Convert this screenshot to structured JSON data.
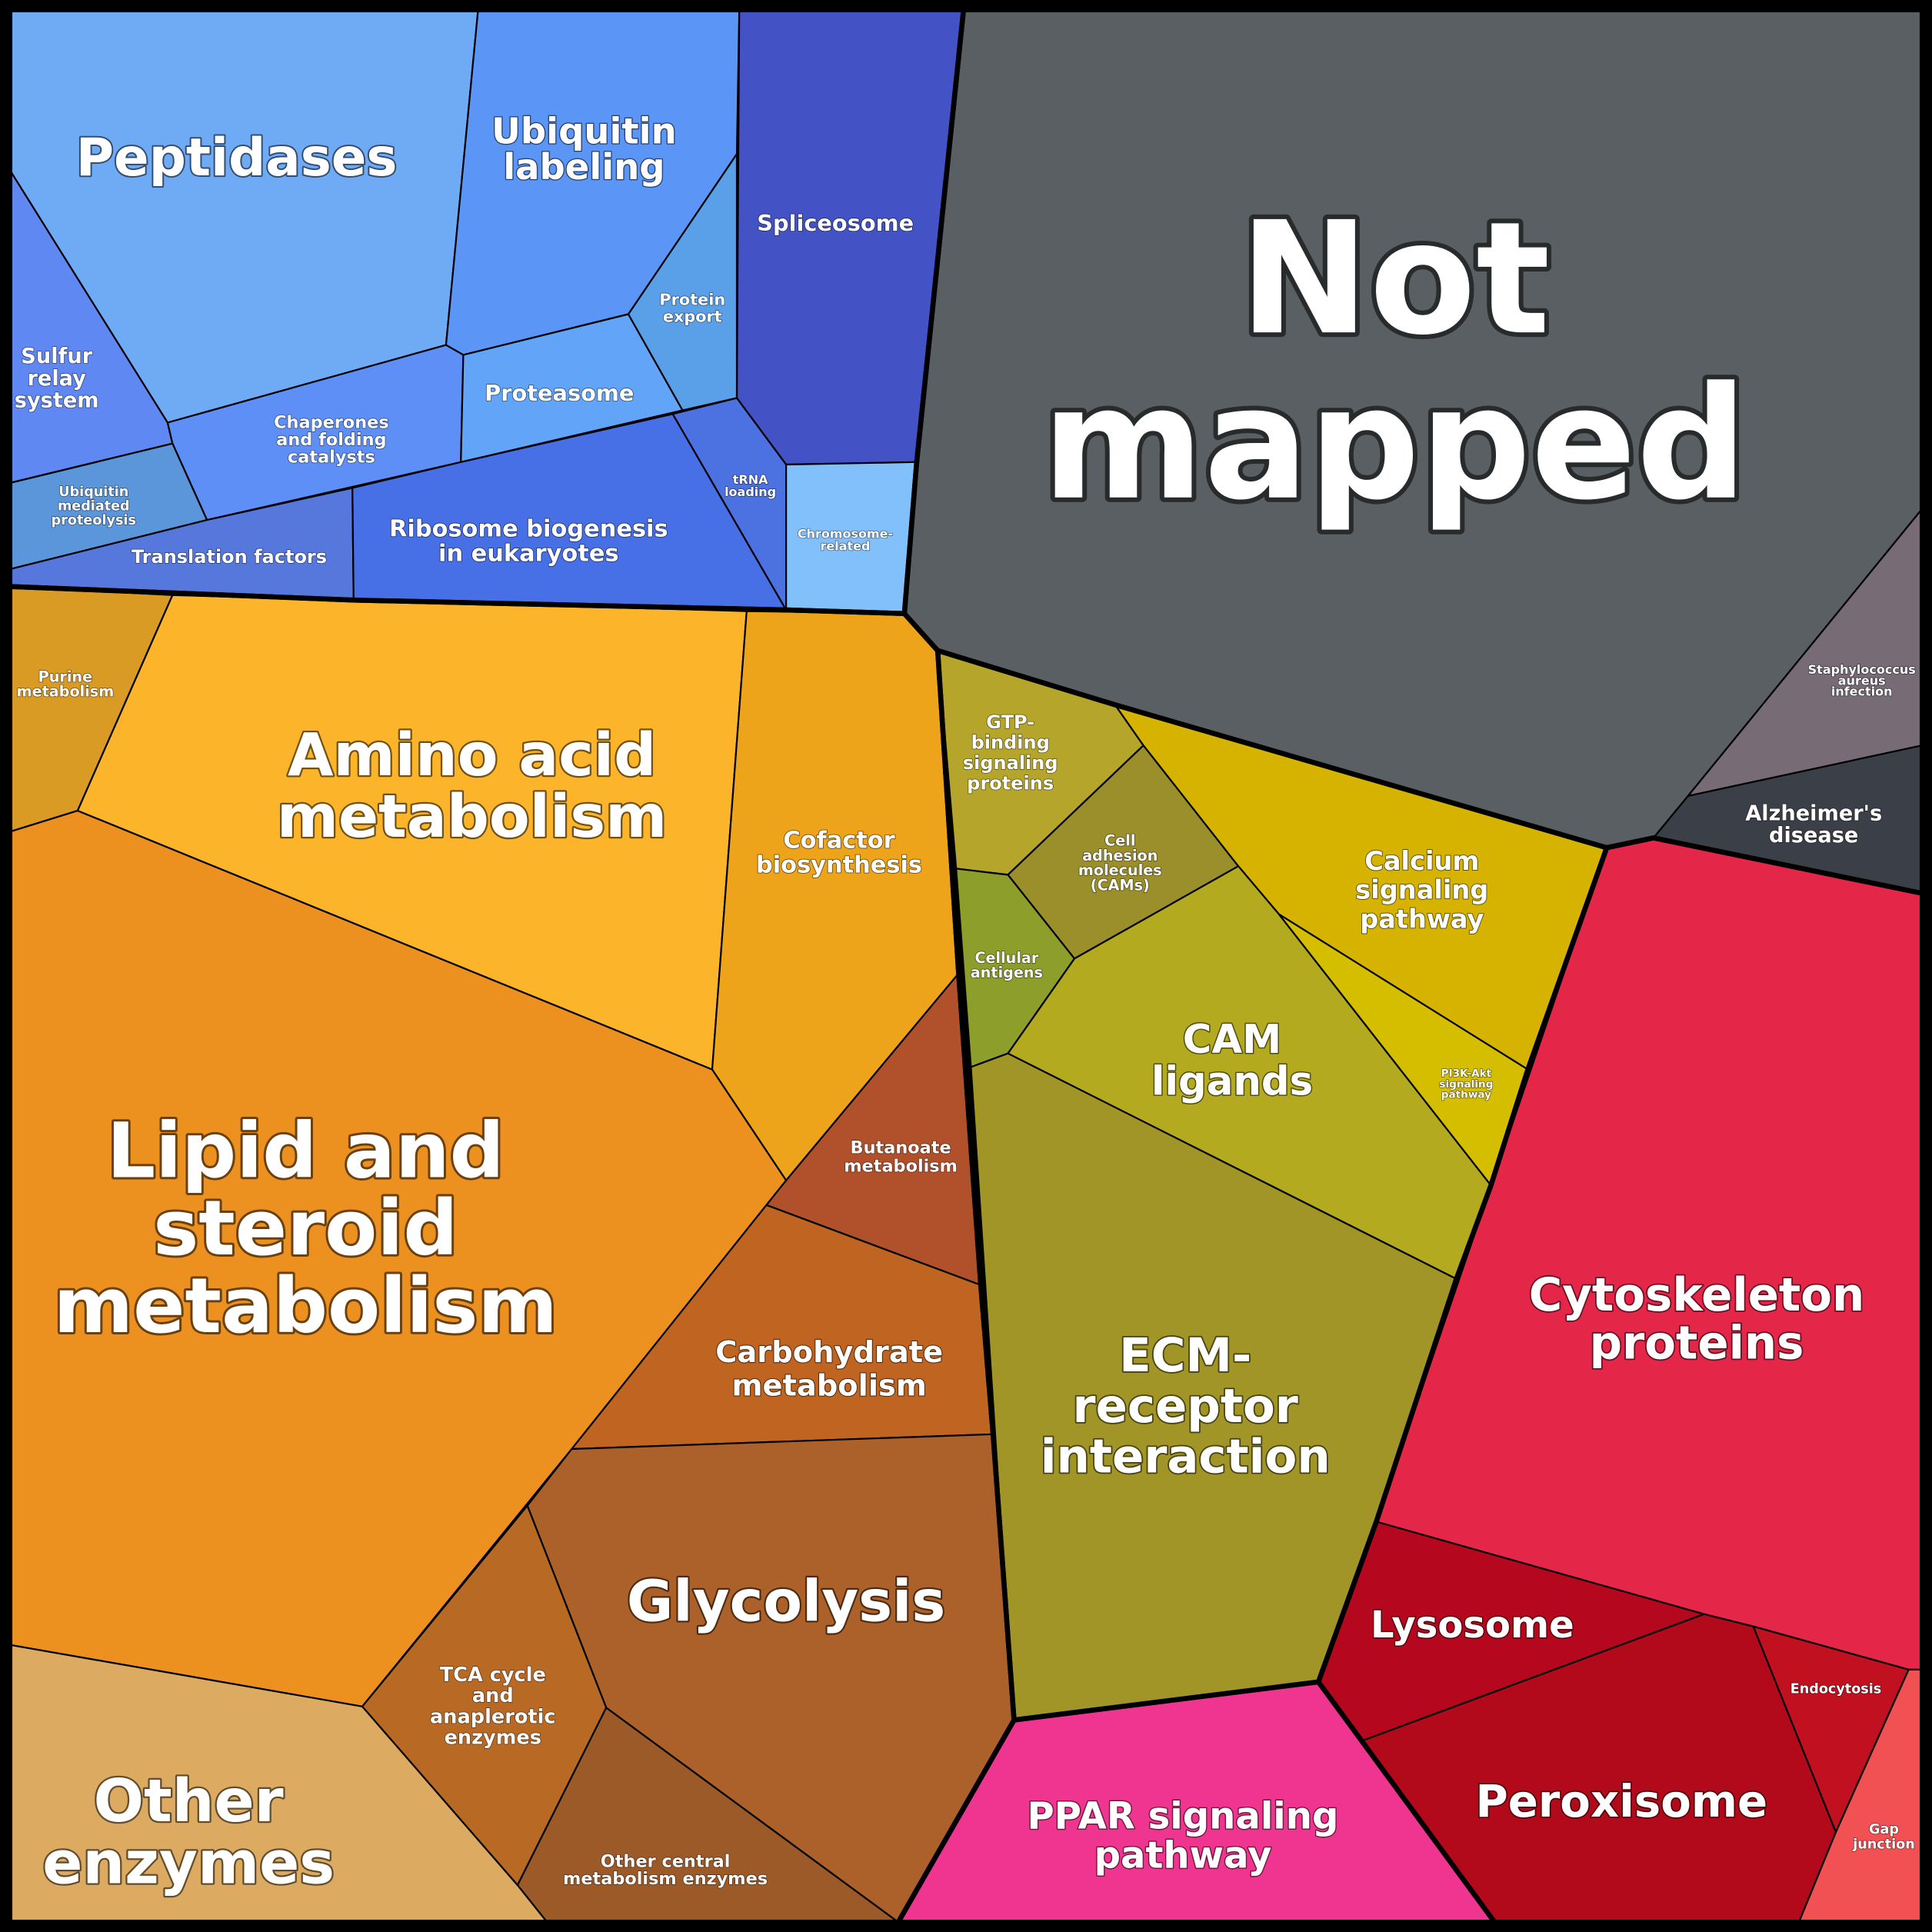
{
  "colors": {
    "blue_group": "#5b8df0",
    "orange_group": "#ec9120",
    "olive_group": "#a09526",
    "red_group": "#e42649",
    "grey_group": "#5a5f63"
  },
  "cells": [
    {
      "id": "peptidases",
      "label": "Peptidases",
      "color": "#6faaf5"
    },
    {
      "id": "ubiquitin-labeling",
      "label": "Ubiquitin labeling",
      "color": "#5b96f7"
    },
    {
      "id": "spliceosome",
      "label": "Spliceosome",
      "color": "#4352c4"
    },
    {
      "id": "sulfur-relay-system",
      "label": "Sulfur relay system",
      "color": "#6088f3"
    },
    {
      "id": "chaperones",
      "label": "Chaperones and folding catalysts",
      "color": "#5d8ff7"
    },
    {
      "id": "proteasome",
      "label": "Proteasome",
      "color": "#62a5f8"
    },
    {
      "id": "protein-export",
      "label": "Protein export",
      "color": "#5aa0e8"
    },
    {
      "id": "ubiquitin-mediated-proteolysis",
      "label": "Ubiquitin mediated proteolysis",
      "color": "#5b95da"
    },
    {
      "id": "translation-factors",
      "label": "Translation factors",
      "color": "#5677dc"
    },
    {
      "id": "ribosome-biogenesis",
      "label": "Ribosome biogenesis in eukaryotes",
      "color": "#4770e6"
    },
    {
      "id": "trna-loading",
      "label": "tRNA loading",
      "color": "#4b72e0"
    },
    {
      "id": "chromosome-related",
      "label": "Chromosome-related",
      "color": "#82c0fb"
    },
    {
      "id": "not-mapped",
      "label": "Not mapped",
      "color": "#5a5f63"
    },
    {
      "id": "staphylococcus",
      "label": "Staphylococcus aureus infection",
      "color": "#776b75"
    },
    {
      "id": "alzheimers",
      "label": "Alzheimer's disease",
      "color": "#3a3f48"
    },
    {
      "id": "purine-metabolism",
      "label": "Purine metabolism",
      "color": "#da9b25"
    },
    {
      "id": "amino-acid-metabolism",
      "label": "Amino acid metabolism",
      "color": "#fcb52a"
    },
    {
      "id": "cofactor-biosynthesis",
      "label": "Cofactor biosynthesis",
      "color": "#eda41b"
    },
    {
      "id": "lipid-steroid-metabolism",
      "label": "Lipid and steroid metabolism",
      "color": "#ec9120"
    },
    {
      "id": "butanoate-metabolism",
      "label": "Butanoate metabolism",
      "color": "#b1512b"
    },
    {
      "id": "carbohydrate-metabolism",
      "label": "Carbohydrate metabolism",
      "color": "#c06421"
    },
    {
      "id": "glycolysis",
      "label": "Glycolysis",
      "color": "#ab6129"
    },
    {
      "id": "tca-cycle",
      "label": "TCA cycle and anaplerotic enzymes",
      "color": "#b86a25"
    },
    {
      "id": "other-central-metabolism",
      "label": "Other central metabolism enzymes",
      "color": "#9c5a29"
    },
    {
      "id": "other-enzymes",
      "label": "Other enzymes",
      "color": "#dcaa61"
    },
    {
      "id": "gtp-binding",
      "label": "GTP-binding signaling proteins",
      "color": "#b5a52b"
    },
    {
      "id": "cell-adhesion-molecules",
      "label": "Cell adhesion molecules (CAMs)",
      "color": "#9a8f2b"
    },
    {
      "id": "cellular-antigens",
      "label": "Cellular antigens",
      "color": "#8e9e2a"
    },
    {
      "id": "calcium-signaling",
      "label": "Calcium signaling pathway",
      "color": "#d6b300"
    },
    {
      "id": "cam-ligands",
      "label": "CAM ligands",
      "color": "#b4aa20"
    },
    {
      "id": "pi3k-akt",
      "label": "PI3K-Akt signaling pathway",
      "color": "#d5be00"
    },
    {
      "id": "ecm-receptor",
      "label": "ECM-receptor interaction",
      "color": "#a09526"
    },
    {
      "id": "ppar-signaling",
      "label": "PPAR signaling pathway",
      "color": "#ef358f"
    },
    {
      "id": "cytoskeleton-proteins",
      "label": "Cytoskeleton proteins",
      "color": "#e42649"
    },
    {
      "id": "lysosome",
      "label": "Lysosome",
      "color": "#b5071d"
    },
    {
      "id": "peroxisome",
      "label": "Peroxisome",
      "color": "#b30a1b"
    },
    {
      "id": "endocytosis",
      "label": "Endocytosis",
      "color": "#c1101f"
    },
    {
      "id": "gap-junction",
      "label": "Gap junction",
      "color": "#f25153"
    }
  ],
  "labels": [
    {
      "cell": "peptidases",
      "lines": [
        "Peptidases"
      ]
    },
    {
      "cell": "ubiquitin-labeling",
      "lines": [
        "Ubiquitin",
        "labeling"
      ]
    },
    {
      "cell": "spliceosome",
      "lines": [
        "Spliceosome"
      ]
    },
    {
      "cell": "sulfur-relay-system",
      "lines": [
        "Sulfur",
        "relay",
        "system"
      ]
    },
    {
      "cell": "chaperones",
      "lines": [
        "Chaperones",
        "and folding",
        "catalysts"
      ]
    },
    {
      "cell": "proteasome",
      "lines": [
        "Proteasome"
      ]
    },
    {
      "cell": "protein-export",
      "lines": [
        "Protein",
        "export"
      ]
    },
    {
      "cell": "ubiquitin-mediated-proteolysis",
      "lines": [
        "Ubiquitin",
        "mediated",
        "proteolysis"
      ]
    },
    {
      "cell": "translation-factors",
      "lines": [
        "Translation factors"
      ]
    },
    {
      "cell": "ribosome-biogenesis",
      "lines": [
        "Ribosome biogenesis",
        "in eukaryotes"
      ]
    },
    {
      "cell": "trna-loading",
      "lines": [
        "tRNA",
        "loading"
      ]
    },
    {
      "cell": "chromosome-related",
      "lines": [
        "Chromosome-",
        "related"
      ]
    },
    {
      "cell": "not-mapped",
      "lines": [
        "Not",
        "mapped"
      ]
    },
    {
      "cell": "staphylococcus",
      "lines": [
        "Staphylococcus",
        "aureus",
        "infection"
      ]
    },
    {
      "cell": "alzheimers",
      "lines": [
        "Alzheimer's",
        "disease"
      ]
    },
    {
      "cell": "purine-metabolism",
      "lines": [
        "Purine",
        "metabolism"
      ]
    },
    {
      "cell": "amino-acid-metabolism",
      "lines": [
        "Amino acid",
        "metabolism"
      ]
    },
    {
      "cell": "cofactor-biosynthesis",
      "lines": [
        "Cofactor",
        "biosynthesis"
      ]
    },
    {
      "cell": "lipid-steroid-metabolism",
      "lines": [
        "Lipid and",
        "steroid",
        "metabolism"
      ]
    },
    {
      "cell": "butanoate-metabolism",
      "lines": [
        "Butanoate",
        "metabolism"
      ]
    },
    {
      "cell": "carbohydrate-metabolism",
      "lines": [
        "Carbohydrate",
        "metabolism"
      ]
    },
    {
      "cell": "glycolysis",
      "lines": [
        "Glycolysis"
      ]
    },
    {
      "cell": "tca-cycle",
      "lines": [
        "TCA cycle",
        "and",
        "anaplerotic",
        "enzymes"
      ]
    },
    {
      "cell": "other-central-metabolism",
      "lines": [
        "Other central",
        "metabolism enzymes"
      ]
    },
    {
      "cell": "other-enzymes",
      "lines": [
        "Other",
        "enzymes"
      ]
    },
    {
      "cell": "gtp-binding",
      "lines": [
        "GTP-",
        "binding",
        "signaling",
        "proteins"
      ]
    },
    {
      "cell": "cell-adhesion-molecules",
      "lines": [
        "Cell",
        "adhesion",
        "molecules",
        "(CAMs)"
      ]
    },
    {
      "cell": "cellular-antigens",
      "lines": [
        "Cellular",
        "antigens"
      ]
    },
    {
      "cell": "calcium-signaling",
      "lines": [
        "Calcium",
        "signaling",
        "pathway"
      ]
    },
    {
      "cell": "cam-ligands",
      "lines": [
        "CAM",
        "ligands"
      ]
    },
    {
      "cell": "pi3k-akt",
      "lines": [
        "PI3K-Akt",
        "signaling",
        "pathway"
      ]
    },
    {
      "cell": "ecm-receptor",
      "lines": [
        "ECM-",
        "receptor",
        "interaction"
      ]
    },
    {
      "cell": "ppar-signaling",
      "lines": [
        "PPAR signaling",
        "pathway"
      ]
    },
    {
      "cell": "cytoskeleton-proteins",
      "lines": [
        "Cytoskeleton",
        "proteins"
      ]
    },
    {
      "cell": "lysosome",
      "lines": [
        "Lysosome"
      ]
    },
    {
      "cell": "peroxisome",
      "lines": [
        "Peroxisome"
      ]
    },
    {
      "cell": "endocytosis",
      "lines": [
        "Endocytosis"
      ]
    },
    {
      "cell": "gap-junction",
      "lines": [
        "Gap",
        "junction"
      ]
    }
  ]
}
